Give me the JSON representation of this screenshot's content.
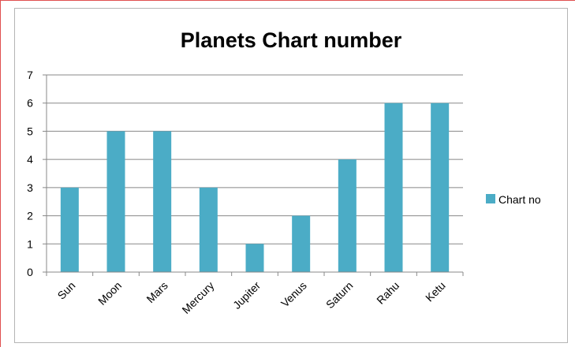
{
  "colors": {
    "bar": "#4BACC6",
    "grid": "#888888",
    "axis": "#888888",
    "page_frame": "#e05050"
  },
  "chart_data": {
    "type": "bar",
    "title": "Planets Chart number",
    "categories": [
      "Sun",
      "Moon",
      "Mars",
      "Mercury",
      "Jupiter",
      "Venus",
      "Saturn",
      "Rahu",
      "Ketu"
    ],
    "series": [
      {
        "name": "Chart no",
        "values": [
          3,
          5,
          5,
          3,
          1,
          2,
          4,
          6,
          6
        ]
      }
    ],
    "xlabel": "",
    "ylabel": "",
    "ylim": [
      0,
      7
    ],
    "yticks": [
      "0",
      "1",
      "2",
      "3",
      "4",
      "5",
      "6",
      "7"
    ],
    "grid": true,
    "legend_position": "right"
  }
}
